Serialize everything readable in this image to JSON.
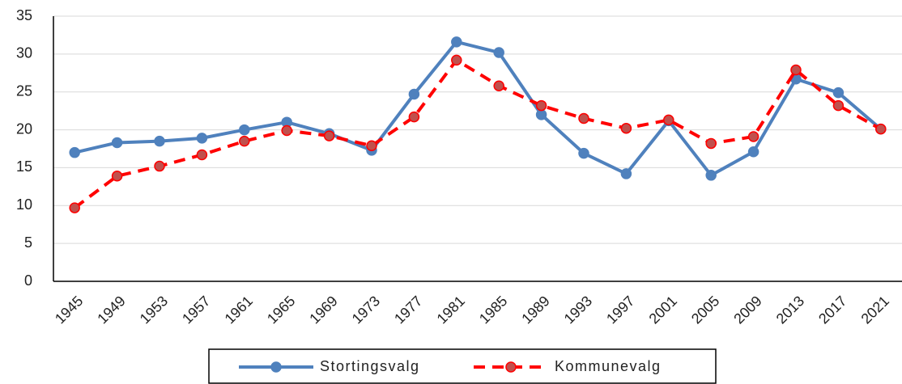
{
  "chart_data": {
    "type": "line",
    "categories": [
      "1945",
      "1949",
      "1953",
      "1957",
      "1961",
      "1965",
      "1969",
      "1973",
      "1977",
      "1981",
      "1985",
      "1989",
      "1993",
      "1997",
      "2001",
      "2005",
      "2009",
      "2013",
      "2017",
      "2021"
    ],
    "series": [
      {
        "name": "Stortingsvalg",
        "color": "#4f81bd",
        "dashed": false,
        "values": [
          17.0,
          18.3,
          18.5,
          18.9,
          20.0,
          21.0,
          19.5,
          17.3,
          24.7,
          31.6,
          30.2,
          22.0,
          16.9,
          14.2,
          21.2,
          14.0,
          17.1,
          26.7,
          24.9,
          20.1
        ]
      },
      {
        "name": "Kommunevalg",
        "color": "#ff0000",
        "dashed": true,
        "values": [
          9.7,
          13.9,
          15.2,
          16.7,
          18.5,
          19.9,
          19.2,
          17.9,
          21.7,
          29.2,
          25.8,
          23.2,
          21.5,
          20.2,
          21.3,
          18.2,
          19.1,
          27.9,
          23.2,
          20.1
        ]
      }
    ],
    "ylim": [
      0,
      35
    ],
    "yticks": [
      0,
      5,
      10,
      15,
      20,
      25,
      30,
      35
    ],
    "grid": true
  }
}
